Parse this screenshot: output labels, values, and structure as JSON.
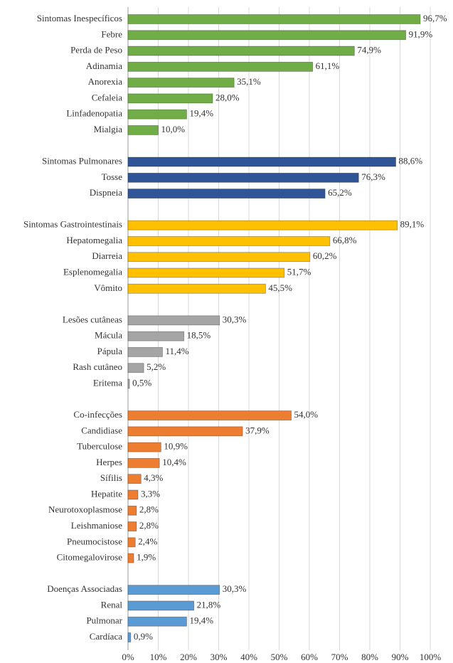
{
  "chart_data": {
    "type": "bar",
    "orientation": "horizontal",
    "categories": [
      "Sintomas Inespecíficos",
      "Febre",
      "Perda de Peso",
      "Adinamia",
      "Anorexia",
      "Cefaleia",
      "Linfadenopatia",
      "Mialgia",
      null,
      "Sintomas Pulmonares",
      "Tosse",
      "Dispneia",
      null,
      "Sintomas Gastrointestinais",
      "Hepatomegalia",
      "Diarreia",
      "Esplenomegalia",
      "Vômito",
      null,
      "Lesões cutâneas",
      "Mácula",
      "Pápula",
      "Rash cutâneo",
      "Eritema",
      null,
      "Co-infecções",
      "Candidiase",
      "Tuberculose",
      "Herpes",
      "Sífilis",
      "Hepatite",
      "Neurotoxoplasmose",
      "Leishmaniose",
      "Pneumocistose",
      "Citomegalovirose",
      null,
      "Doenças Associadas",
      "Renal",
      "Pulmonar",
      "Cardíaca"
    ],
    "values": [
      96.7,
      91.9,
      74.9,
      61.1,
      35.1,
      28.0,
      19.4,
      10.0,
      null,
      88.6,
      76.3,
      65.2,
      null,
      89.1,
      66.8,
      60.2,
      51.7,
      45.5,
      null,
      30.3,
      18.5,
      11.4,
      5.2,
      0.5,
      null,
      54.0,
      37.9,
      10.9,
      10.4,
      4.3,
      3.3,
      2.8,
      2.8,
      2.4,
      1.9,
      null,
      30.3,
      21.8,
      19.4,
      0.9
    ],
    "value_labels": [
      "96,7%",
      "91,9%",
      "74,9%",
      "61,1%",
      "35,1%",
      "28,0%",
      "19,4%",
      "10,0%",
      null,
      "88,6%",
      "76,3%",
      "65,2%",
      null,
      "89,1%",
      "66,8%",
      "60,2%",
      "51,7%",
      "45,5%",
      null,
      "30,3%",
      "18,5%",
      "11,4%",
      "5,2%",
      "0,5%",
      null,
      "54,0%",
      "37,9%",
      "10,9%",
      "10,4%",
      "4,3%",
      "3,3%",
      "2,8%",
      "2,8%",
      "2,4%",
      "1,9%",
      null,
      "30,3%",
      "21,8%",
      "19,4%",
      "0,9%"
    ],
    "colors": [
      "#70ad47",
      "#70ad47",
      "#70ad47",
      "#70ad47",
      "#70ad47",
      "#70ad47",
      "#70ad47",
      "#70ad47",
      null,
      "#2f5597",
      "#2f5597",
      "#2f5597",
      null,
      "#ffc000",
      "#ffc000",
      "#ffc000",
      "#ffc000",
      "#ffc000",
      null,
      "#a5a5a5",
      "#a5a5a5",
      "#a5a5a5",
      "#a5a5a5",
      "#a5a5a5",
      null,
      "#ed7d31",
      "#ed7d31",
      "#ed7d31",
      "#ed7d31",
      "#ed7d31",
      "#ed7d31",
      "#ed7d31",
      "#ed7d31",
      "#ed7d31",
      "#ed7d31",
      null,
      "#5b9bd5",
      "#5b9bd5",
      "#5b9bd5",
      "#5b9bd5"
    ],
    "xlim": [
      0,
      100
    ],
    "xticks": [
      {
        "value": 0,
        "label": "0%"
      },
      {
        "value": 10,
        "label": "10%"
      },
      {
        "value": 20,
        "label": "20%"
      },
      {
        "value": 30,
        "label": "30%"
      },
      {
        "value": 40,
        "label": "40%"
      },
      {
        "value": 50,
        "label": "50%"
      },
      {
        "value": 60,
        "label": "60%"
      },
      {
        "value": 70,
        "label": "70%"
      },
      {
        "value": 80,
        "label": "80%"
      },
      {
        "value": 90,
        "label": "90%"
      },
      {
        "value": 100,
        "label": "100%"
      }
    ],
    "grid": true
  }
}
